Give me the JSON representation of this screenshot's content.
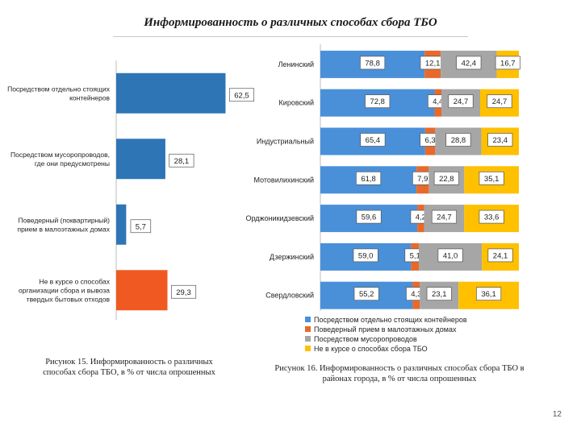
{
  "page": {
    "title": "Информированность о различных способах сбора ТБО",
    "page_number": "12"
  },
  "captions": {
    "left": "Рисунок 15. Информированность о различных способах сбора ТБО, в % от числа опрошенных",
    "right": "Рисунок 16. Информированность о различных способах сбора ТБО в районах города, в % от числа опрошенных"
  },
  "colors": {
    "blue": "#4a90d9",
    "orange": "#e8692a",
    "gray": "#a6a6a6",
    "yellow": "#ffc000",
    "left_blue": "#2e75b6",
    "left_orange": "#f05a22"
  },
  "chart_data": [
    {
      "type": "bar",
      "orientation": "horizontal",
      "title": "",
      "categories": [
        "Посредством отдельно стоящих контейнеров",
        "Посредством мусоропроводов, где они предусмотрены",
        "Поведерный (поквартирный) прием в малоэтажных домах",
        "Не в курсе о способах организации сбора и вывоза твердых бытовых отходов"
      ],
      "values": [
        62.5,
        28.1,
        5.7,
        29.3
      ],
      "labels": [
        "62,5",
        "28,1",
        "5,7",
        "29,3"
      ],
      "bar_colors": [
        "#2e75b6",
        "#2e75b6",
        "#2e75b6",
        "#f05a22"
      ],
      "xlim": [
        0,
        100
      ],
      "grid": false
    },
    {
      "type": "bar",
      "orientation": "horizontal",
      "stacked": true,
      "title": "",
      "categories": [
        "Ленинский",
        "Кировский",
        "Индустриальный",
        "Мотовилихинский",
        "Орджоникидзевский",
        "Дзержинский",
        "Свердловский"
      ],
      "series": [
        {
          "name": "Посредством отдельно стоящих контейнеров",
          "color": "#4a90d9",
          "values": [
            78.8,
            72.8,
            65.4,
            61.8,
            59.6,
            59.0,
            55.2
          ],
          "labels": [
            "78,8",
            "72,8",
            "65,4",
            "61,8",
            "59,6",
            "59,0",
            "55,2"
          ]
        },
        {
          "name": "Поведерный прием в малоэтажных домах",
          "color": "#e8692a",
          "values": [
            12.1,
            4.4,
            6.3,
            7.9,
            4.2,
            5.1,
            4.3
          ],
          "labels": [
            "12,1",
            "4,4",
            "6,3",
            "7,9",
            "4,2",
            "5,1",
            "4,3"
          ]
        },
        {
          "name": "Посредством мусоропроводов",
          "color": "#a6a6a6",
          "values": [
            42.4,
            24.7,
            28.8,
            22.8,
            24.7,
            41.0,
            23.1
          ],
          "labels": [
            "42,4",
            "24,7",
            "28,8",
            "22,8",
            "24,7",
            "41,0",
            "23,1"
          ]
        },
        {
          "name": "Не в курсе о способах сбора ТБО",
          "color": "#ffc000",
          "values": [
            16.7,
            24.7,
            23.4,
            35.1,
            33.6,
            24.1,
            36.1
          ],
          "labels": [
            "16,7",
            "24,7",
            "23,4",
            "35,1",
            "33,6",
            "24,1",
            "36,1"
          ]
        }
      ],
      "legend": [
        "Посредством отдельно стоящих контейнеров",
        "Поведерный прием в малоэтажных домах",
        "Посредством мусоропроводов",
        "Не в курсе о способах сбора ТБО"
      ],
      "legend_position": "bottom",
      "grid": false
    }
  ]
}
